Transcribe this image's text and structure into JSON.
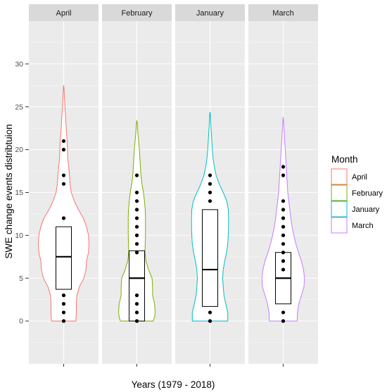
{
  "chart_data": {
    "type": "violin",
    "facets": [
      "April",
      "February",
      "January",
      "March"
    ],
    "xlabel": "Years (1979 - 2018)",
    "ylabel": "SWE change events distribtuion",
    "ylim": [
      -5,
      35
    ],
    "yticks": [
      0,
      5,
      10,
      15,
      20,
      25,
      30
    ],
    "grid": true,
    "legend": {
      "title": "Month",
      "position": "right",
      "entries": [
        {
          "name": "April",
          "color": "#F8766D"
        },
        {
          "name": "February",
          "color": "#7CAE00"
        },
        {
          "name": "January",
          "color": "#00BFC4"
        },
        {
          "name": "March",
          "color": "#C77CFF"
        }
      ]
    },
    "series": [
      {
        "name": "April",
        "color": "#F8766D",
        "violin_profile": [
          [
            0,
            0.48
          ],
          [
            1,
            0.5
          ],
          [
            2,
            0.5
          ],
          [
            3,
            0.52
          ],
          [
            4,
            0.62
          ],
          [
            5,
            0.8
          ],
          [
            6,
            0.88
          ],
          [
            7,
            0.9
          ],
          [
            8,
            0.98
          ],
          [
            9,
            1.0
          ],
          [
            10,
            0.98
          ],
          [
            11,
            0.9
          ],
          [
            12,
            0.78
          ],
          [
            13,
            0.58
          ],
          [
            14,
            0.42
          ],
          [
            15,
            0.3
          ],
          [
            16,
            0.25
          ],
          [
            17,
            0.23
          ],
          [
            18,
            0.2
          ],
          [
            19,
            0.16
          ],
          [
            20,
            0.15
          ],
          [
            21,
            0.14
          ],
          [
            22,
            0.11
          ],
          [
            23,
            0.09
          ],
          [
            24,
            0.07
          ],
          [
            25,
            0.05
          ],
          [
            26,
            0.03
          ],
          [
            27,
            0.015
          ],
          [
            27.5,
            0
          ]
        ],
        "box": {
          "q1": 3.7,
          "median": 7.5,
          "q3": 11,
          "min": 0,
          "max": 21
        },
        "points": [
          0,
          1,
          2,
          3,
          12,
          16,
          17,
          20,
          21
        ]
      },
      {
        "name": "February",
        "color": "#7CAE00",
        "violin_profile": [
          [
            0,
            0.65
          ],
          [
            0.5,
            0.7
          ],
          [
            1,
            0.72
          ],
          [
            2,
            0.7
          ],
          [
            3,
            0.62
          ],
          [
            4,
            0.62
          ],
          [
            5,
            0.6
          ],
          [
            6,
            0.46
          ],
          [
            7,
            0.36
          ],
          [
            8,
            0.32
          ],
          [
            9,
            0.33
          ],
          [
            10,
            0.34
          ],
          [
            11,
            0.34
          ],
          [
            12,
            0.34
          ],
          [
            13,
            0.33
          ],
          [
            14,
            0.3
          ],
          [
            15,
            0.26
          ],
          [
            16,
            0.2
          ],
          [
            17,
            0.16
          ],
          [
            18,
            0.14
          ],
          [
            19,
            0.12
          ],
          [
            20,
            0.1
          ],
          [
            21,
            0.07
          ],
          [
            22,
            0.04
          ],
          [
            23,
            0.02
          ],
          [
            23.4,
            0
          ]
        ],
        "box": {
          "q1": 0,
          "median": 5,
          "q3": 8.2,
          "min": 0,
          "max": 17
        },
        "points": [
          0,
          1,
          2,
          3,
          8,
          9,
          10,
          11,
          12,
          13,
          14,
          15,
          17
        ]
      },
      {
        "name": "January",
        "color": "#00BFC4",
        "violin_profile": [
          [
            0,
            0.7
          ],
          [
            0.5,
            0.7
          ],
          [
            1,
            0.7
          ],
          [
            2,
            0.62
          ],
          [
            3,
            0.55
          ],
          [
            4,
            0.52
          ],
          [
            5,
            0.5
          ],
          [
            6,
            0.52
          ],
          [
            7,
            0.58
          ],
          [
            8,
            0.65
          ],
          [
            9,
            0.7
          ],
          [
            10,
            0.72
          ],
          [
            11,
            0.73
          ],
          [
            12,
            0.73
          ],
          [
            13,
            0.72
          ],
          [
            14,
            0.66
          ],
          [
            15,
            0.52
          ],
          [
            16,
            0.36
          ],
          [
            17,
            0.24
          ],
          [
            18,
            0.17
          ],
          [
            19,
            0.12
          ],
          [
            20,
            0.09
          ],
          [
            21,
            0.07
          ],
          [
            22,
            0.05
          ],
          [
            23,
            0.03
          ],
          [
            24,
            0.015
          ],
          [
            24.4,
            0
          ]
        ],
        "box": {
          "q1": 1.7,
          "median": 6,
          "q3": 13,
          "min": 0,
          "max": 17
        },
        "points": [
          0,
          1,
          14,
          15,
          16,
          17
        ]
      },
      {
        "name": "March",
        "color": "#C77CFF",
        "violin_profile": [
          [
            0,
            0.55
          ],
          [
            1,
            0.56
          ],
          [
            2,
            0.62
          ],
          [
            3,
            0.72
          ],
          [
            4,
            0.82
          ],
          [
            5,
            0.84
          ],
          [
            6,
            0.8
          ],
          [
            7,
            0.72
          ],
          [
            8,
            0.6
          ],
          [
            9,
            0.5
          ],
          [
            10,
            0.42
          ],
          [
            11,
            0.35
          ],
          [
            12,
            0.3
          ],
          [
            13,
            0.26
          ],
          [
            14,
            0.22
          ],
          [
            15,
            0.18
          ],
          [
            16,
            0.16
          ],
          [
            17,
            0.14
          ],
          [
            18,
            0.12
          ],
          [
            19,
            0.1
          ],
          [
            20,
            0.08
          ],
          [
            21,
            0.06
          ],
          [
            22,
            0.04
          ],
          [
            23,
            0.02
          ],
          [
            23.8,
            0
          ]
        ],
        "box": {
          "q1": 2,
          "median": 5,
          "q3": 8,
          "min": 0,
          "max": 18
        },
        "points": [
          0,
          1,
          6,
          7,
          8,
          9,
          10,
          11,
          12,
          13,
          14,
          17,
          18
        ]
      }
    ]
  }
}
